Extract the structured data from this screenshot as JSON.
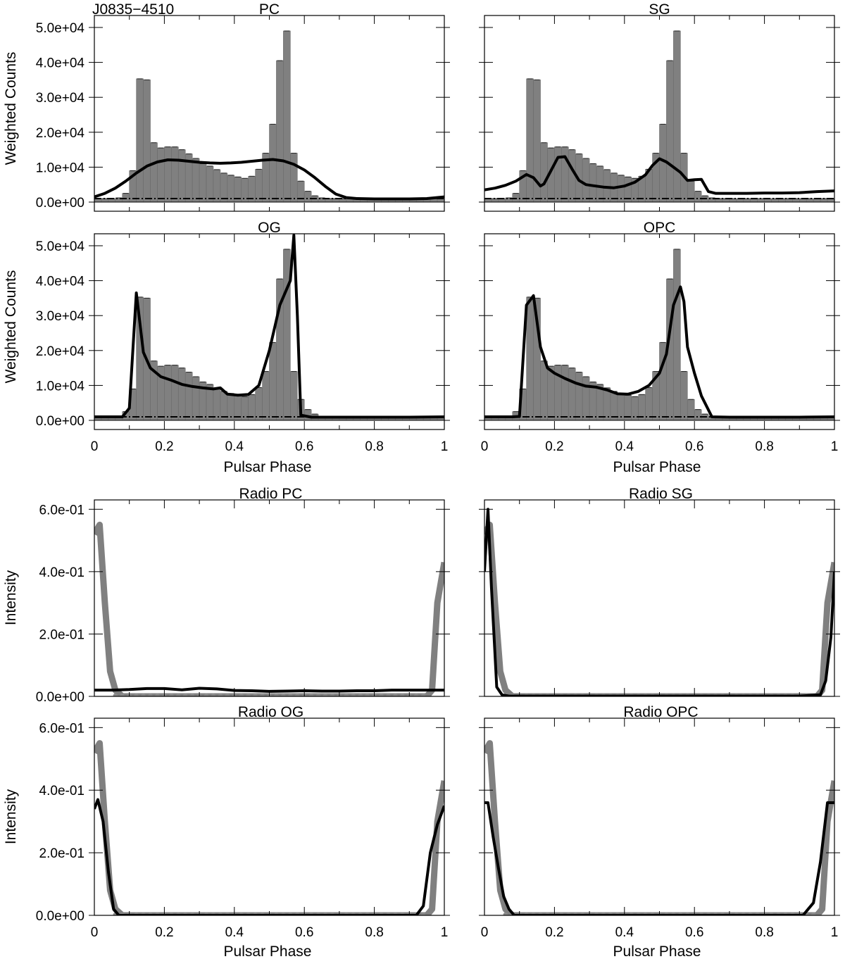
{
  "figure": {
    "source_label": "J0835−4510",
    "x_axis_label": "Pulsar Phase",
    "gamma_y_label": "Weighted Counts",
    "radio_y_label": "Intensity",
    "x_ticks": [
      "0",
      "0.2",
      "0.4",
      "0.6",
      "0.8",
      "1"
    ],
    "gamma_y_ticks": [
      "0.0e+00",
      "1.0e+04",
      "2.0e+04",
      "3.0e+04",
      "4.0e+04",
      "5.0e+04"
    ],
    "radio_y_ticks": [
      "0.0e+00",
      "2.0e-01",
      "4.0e-01",
      "6.0e-01"
    ]
  },
  "chart_data": [
    {
      "type": "bar",
      "id": "gamma-pc",
      "title": "PC",
      "xlabel": "Pulsar Phase",
      "ylabel": "Weighted Counts",
      "xlim": [
        0,
        1
      ],
      "ylim": [
        -3000,
        53000
      ],
      "bin_width": 0.02,
      "histogram": [
        1000,
        1000,
        1000,
        1200,
        2500,
        9000,
        35300,
        35000,
        17000,
        15500,
        15800,
        15800,
        15000,
        13800,
        12500,
        11000,
        10300,
        9300,
        8300,
        7700,
        7200,
        6800,
        7400,
        9400,
        14000,
        22300,
        40500,
        49000,
        14000,
        6000,
        3100,
        1800,
        1200,
        1000,
        1000,
        1000,
        1000,
        1000,
        1000,
        1000,
        1000,
        1000,
        1000,
        1000,
        1000,
        1000,
        1000,
        1000,
        1000,
        1000
      ],
      "background": 1000,
      "model": {
        "x": [
          0,
          0.03,
          0.06,
          0.09,
          0.12,
          0.15,
          0.18,
          0.21,
          0.24,
          0.27,
          0.3,
          0.33,
          0.36,
          0.39,
          0.42,
          0.45,
          0.48,
          0.51,
          0.54,
          0.57,
          0.6,
          0.63,
          0.66,
          0.69,
          0.72,
          0.75,
          0.8,
          0.85,
          0.9,
          0.95,
          1.0
        ],
        "y": [
          1500,
          2500,
          4000,
          6000,
          8300,
          10300,
          11500,
          12100,
          12000,
          11700,
          11400,
          11200,
          11100,
          11200,
          11400,
          11700,
          12000,
          12200,
          11800,
          10800,
          9200,
          7000,
          4500,
          2300,
          1300,
          1000,
          900,
          900,
          900,
          1000,
          1500
        ]
      }
    },
    {
      "type": "bar",
      "id": "gamma-sg",
      "title": "SG",
      "xlabel": "Pulsar Phase",
      "ylabel": "Weighted Counts",
      "xlim": [
        0,
        1
      ],
      "ylim": [
        -3000,
        53000
      ],
      "bin_width": 0.02,
      "histogram": [
        1000,
        1000,
        1000,
        1200,
        2500,
        9000,
        35300,
        35000,
        17000,
        15500,
        15800,
        15800,
        15000,
        13800,
        12500,
        11000,
        10300,
        9300,
        8300,
        7700,
        7200,
        6800,
        7400,
        9400,
        14000,
        22300,
        40500,
        49000,
        14000,
        6000,
        3100,
        1800,
        1200,
        1000,
        1000,
        1000,
        1000,
        1000,
        1000,
        1000,
        1000,
        1000,
        1000,
        1000,
        1000,
        1000,
        1000,
        1000,
        1000,
        1000
      ],
      "background": 1000,
      "model": {
        "x": [
          0,
          0.03,
          0.06,
          0.09,
          0.12,
          0.14,
          0.16,
          0.17,
          0.19,
          0.21,
          0.23,
          0.25,
          0.27,
          0.29,
          0.31,
          0.34,
          0.37,
          0.4,
          0.43,
          0.46,
          0.48,
          0.5,
          0.52,
          0.54,
          0.56,
          0.58,
          0.6,
          0.62,
          0.64,
          0.66,
          0.7,
          0.75,
          0.8,
          0.85,
          0.9,
          0.95,
          1.0
        ],
        "y": [
          3500,
          4000,
          4800,
          6000,
          7900,
          7000,
          4600,
          5200,
          9000,
          12800,
          13000,
          9500,
          6200,
          5000,
          4700,
          4300,
          4100,
          4600,
          5700,
          7800,
          10500,
          12400,
          11500,
          10000,
          8500,
          6200,
          6400,
          6500,
          3000,
          2500,
          2500,
          2500,
          2600,
          2600,
          2700,
          3000,
          3200
        ]
      }
    },
    {
      "type": "bar",
      "id": "gamma-og",
      "title": "OG",
      "xlabel": "Pulsar Phase",
      "ylabel": "Weighted Counts",
      "xlim": [
        0,
        1
      ],
      "ylim": [
        -3000,
        53000
      ],
      "bin_width": 0.02,
      "histogram": [
        1000,
        1000,
        1000,
        1200,
        2500,
        9000,
        35300,
        35000,
        17000,
        15500,
        15800,
        15800,
        15000,
        13800,
        12500,
        11000,
        10300,
        9300,
        8300,
        7700,
        7200,
        6800,
        7400,
        9400,
        14000,
        22300,
        40500,
        49000,
        14000,
        6000,
        3100,
        1800,
        1200,
        1000,
        1000,
        1000,
        1000,
        1000,
        1000,
        1000,
        1000,
        1000,
        1000,
        1000,
        1000,
        1000,
        1000,
        1000,
        1000,
        1000
      ],
      "background": 1000,
      "model": {
        "x": [
          0,
          0.04,
          0.08,
          0.1,
          0.12,
          0.14,
          0.16,
          0.19,
          0.22,
          0.25,
          0.28,
          0.31,
          0.34,
          0.36,
          0.38,
          0.41,
          0.44,
          0.47,
          0.5,
          0.53,
          0.56,
          0.57,
          0.58,
          0.59,
          0.62,
          0.7,
          0.8,
          0.9,
          1.0
        ],
        "y": [
          1000,
          1000,
          1000,
          3500,
          36500,
          19500,
          15000,
          12500,
          11500,
          10300,
          9700,
          9300,
          9000,
          9300,
          7500,
          7200,
          7400,
          10000,
          20000,
          33000,
          40000,
          53000,
          30000,
          1500,
          900,
          900,
          900,
          900,
          1000
        ]
      }
    },
    {
      "type": "bar",
      "id": "gamma-opc",
      "title": "OPC",
      "xlabel": "Pulsar Phase",
      "ylabel": "Weighted Counts",
      "xlim": [
        0,
        1
      ],
      "ylim": [
        -3000,
        53000
      ],
      "bin_width": 0.02,
      "histogram": [
        1000,
        1000,
        1000,
        1200,
        2500,
        9000,
        35300,
        35000,
        17000,
        15500,
        15800,
        15800,
        15000,
        13800,
        12500,
        11000,
        10300,
        9300,
        8300,
        7700,
        7200,
        6800,
        7400,
        9400,
        14000,
        22300,
        40500,
        49000,
        14000,
        6000,
        3100,
        1800,
        1200,
        1000,
        1000,
        1000,
        1000,
        1000,
        1000,
        1000,
        1000,
        1000,
        1000,
        1000,
        1000,
        1000,
        1000,
        1000,
        1000,
        1000
      ],
      "background": 1000,
      "model": {
        "x": [
          0,
          0.04,
          0.08,
          0.1,
          0.12,
          0.14,
          0.16,
          0.18,
          0.2,
          0.23,
          0.26,
          0.29,
          0.32,
          0.35,
          0.38,
          0.41,
          0.44,
          0.47,
          0.5,
          0.52,
          0.54,
          0.56,
          0.57,
          0.58,
          0.6,
          0.62,
          0.65,
          0.7,
          0.8,
          0.9,
          1.0
        ],
        "y": [
          1000,
          1000,
          1000,
          1100,
          33000,
          35700,
          21000,
          15000,
          13500,
          12000,
          10700,
          9800,
          9500,
          8700,
          7600,
          7500,
          8300,
          10000,
          13500,
          19000,
          33000,
          38200,
          34000,
          21000,
          13500,
          7000,
          1000,
          900,
          900,
          900,
          1000
        ]
      }
    },
    {
      "type": "line",
      "id": "radio-pc",
      "title": "Radio PC",
      "xlabel": "Pulsar Phase",
      "ylabel": "Intensity",
      "xlim": [
        0,
        1
      ],
      "ylim": [
        0,
        0.63
      ],
      "observed": {
        "x": [
          0,
          0.015,
          0.03,
          0.045,
          0.06,
          0.08,
          0.95,
          0.965,
          0.98,
          1.0
        ],
        "y": [
          0.52,
          0.55,
          0.3,
          0.08,
          0.02,
          0,
          0,
          0.02,
          0.3,
          0.43
        ]
      },
      "model": {
        "x": [
          0,
          0.05,
          0.1,
          0.15,
          0.2,
          0.25,
          0.3,
          0.35,
          0.4,
          0.45,
          0.5,
          0.55,
          0.6,
          0.65,
          0.7,
          0.75,
          0.8,
          0.85,
          0.9,
          0.95,
          1.0
        ],
        "y": [
          0.02,
          0.02,
          0.022,
          0.025,
          0.025,
          0.021,
          0.026,
          0.024,
          0.019,
          0.018,
          0.016,
          0.017,
          0.018,
          0.017,
          0.017,
          0.018,
          0.018,
          0.02,
          0.02,
          0.02,
          0.02
        ]
      }
    },
    {
      "type": "line",
      "id": "radio-sg",
      "title": "Radio SG",
      "xlabel": "Pulsar Phase",
      "ylabel": "Intensity",
      "xlim": [
        0,
        1
      ],
      "ylim": [
        0,
        0.63
      ],
      "observed": {
        "x": [
          0,
          0.015,
          0.03,
          0.045,
          0.06,
          0.08,
          0.95,
          0.965,
          0.98,
          1.0
        ],
        "y": [
          0.52,
          0.55,
          0.3,
          0.08,
          0.02,
          0,
          0,
          0.02,
          0.3,
          0.43
        ]
      },
      "model": {
        "x": [
          0,
          0.01,
          0.02,
          0.035,
          0.05,
          0.07,
          0.1,
          0.5,
          0.9,
          0.96,
          0.975,
          0.99,
          1.0
        ],
        "y": [
          0.4,
          0.6,
          0.35,
          0.03,
          0.005,
          0.001,
          0.001,
          0.001,
          0.001,
          0.005,
          0.05,
          0.19,
          0.4
        ]
      }
    },
    {
      "type": "line",
      "id": "radio-og",
      "title": "Radio OG",
      "xlabel": "Pulsar Phase",
      "ylabel": "Intensity",
      "xlim": [
        0,
        1
      ],
      "ylim": [
        0,
        0.63
      ],
      "observed": {
        "x": [
          0,
          0.015,
          0.03,
          0.045,
          0.06,
          0.08,
          0.95,
          0.965,
          0.98,
          1.0
        ],
        "y": [
          0.52,
          0.55,
          0.3,
          0.08,
          0.02,
          0,
          0,
          0.02,
          0.3,
          0.43
        ]
      },
      "model": {
        "x": [
          0,
          0.01,
          0.025,
          0.04,
          0.055,
          0.07,
          0.5,
          0.92,
          0.94,
          0.96,
          0.98,
          1.0
        ],
        "y": [
          0.34,
          0.37,
          0.3,
          0.14,
          0.02,
          0,
          0,
          0,
          0.03,
          0.2,
          0.29,
          0.35
        ]
      }
    },
    {
      "type": "line",
      "id": "radio-opc",
      "title": "Radio OPC",
      "xlabel": "Pulsar Phase",
      "ylabel": "Intensity",
      "xlim": [
        0,
        1
      ],
      "ylim": [
        0,
        0.63
      ],
      "observed": {
        "x": [
          0,
          0.015,
          0.03,
          0.045,
          0.06,
          0.08,
          0.95,
          0.965,
          0.98,
          1.0
        ],
        "y": [
          0.52,
          0.55,
          0.3,
          0.08,
          0.02,
          0,
          0,
          0.02,
          0.3,
          0.43
        ]
      },
      "model": {
        "x": [
          0,
          0.01,
          0.025,
          0.04,
          0.055,
          0.07,
          0.085,
          0.5,
          0.91,
          0.94,
          0.96,
          0.98,
          1.0
        ],
        "y": [
          0.36,
          0.36,
          0.25,
          0.15,
          0.06,
          0.02,
          0,
          0,
          0,
          0.04,
          0.17,
          0.36,
          0.36
        ]
      }
    }
  ]
}
